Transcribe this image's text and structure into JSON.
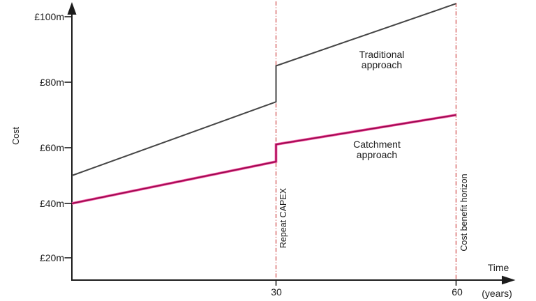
{
  "chart_data": {
    "type": "line",
    "title": "",
    "ylabel": "Cost",
    "xlabel": "Time",
    "xlabel_unit": "(years)",
    "xlim": [
      0,
      60
    ],
    "ylim": [
      15,
      105
    ],
    "grid": false,
    "legend_position": "inline-labels",
    "currency_unit": "£m",
    "y_ticks": [
      {
        "value": 100,
        "label": "£100m"
      },
      {
        "value": 80,
        "label": "£80m"
      },
      {
        "value": 60,
        "label": "£60m"
      },
      {
        "value": 40,
        "label": "£40m"
      },
      {
        "value": 20,
        "label": "£20m"
      }
    ],
    "x_ticks": [
      {
        "value": 30,
        "label": "30"
      },
      {
        "value": 60,
        "label": "60"
      }
    ],
    "series": [
      {
        "name": "Traditional approach",
        "label_lines": [
          "Traditional",
          "approach"
        ],
        "color": "#454545",
        "points": [
          {
            "year": 0,
            "value": 50
          },
          {
            "year": 30,
            "value": 74
          },
          {
            "year": 30,
            "value": 85
          },
          {
            "year": 60,
            "value": 104
          }
        ]
      },
      {
        "name": "Catchment approach",
        "label_lines": [
          "Catchment",
          "approach"
        ],
        "color": "#d6136f",
        "color_core": "#8a0e4a",
        "color_glow": "#ef6fae",
        "points": [
          {
            "year": 0,
            "value": 40
          },
          {
            "year": 30,
            "value": 55
          },
          {
            "year": 30,
            "value": 61
          },
          {
            "year": 60,
            "value": 70
          }
        ]
      }
    ],
    "annotations": [
      {
        "type": "vline",
        "year": 30,
        "label": "Repeat CAPEX",
        "color": "#dc7878",
        "style": "dash-dot"
      },
      {
        "type": "vline",
        "year": 60,
        "label": "Cost benefit horizon",
        "color": "#dc7878",
        "style": "dash-dot"
      }
    ],
    "axis_color": "#1c1c1c"
  }
}
